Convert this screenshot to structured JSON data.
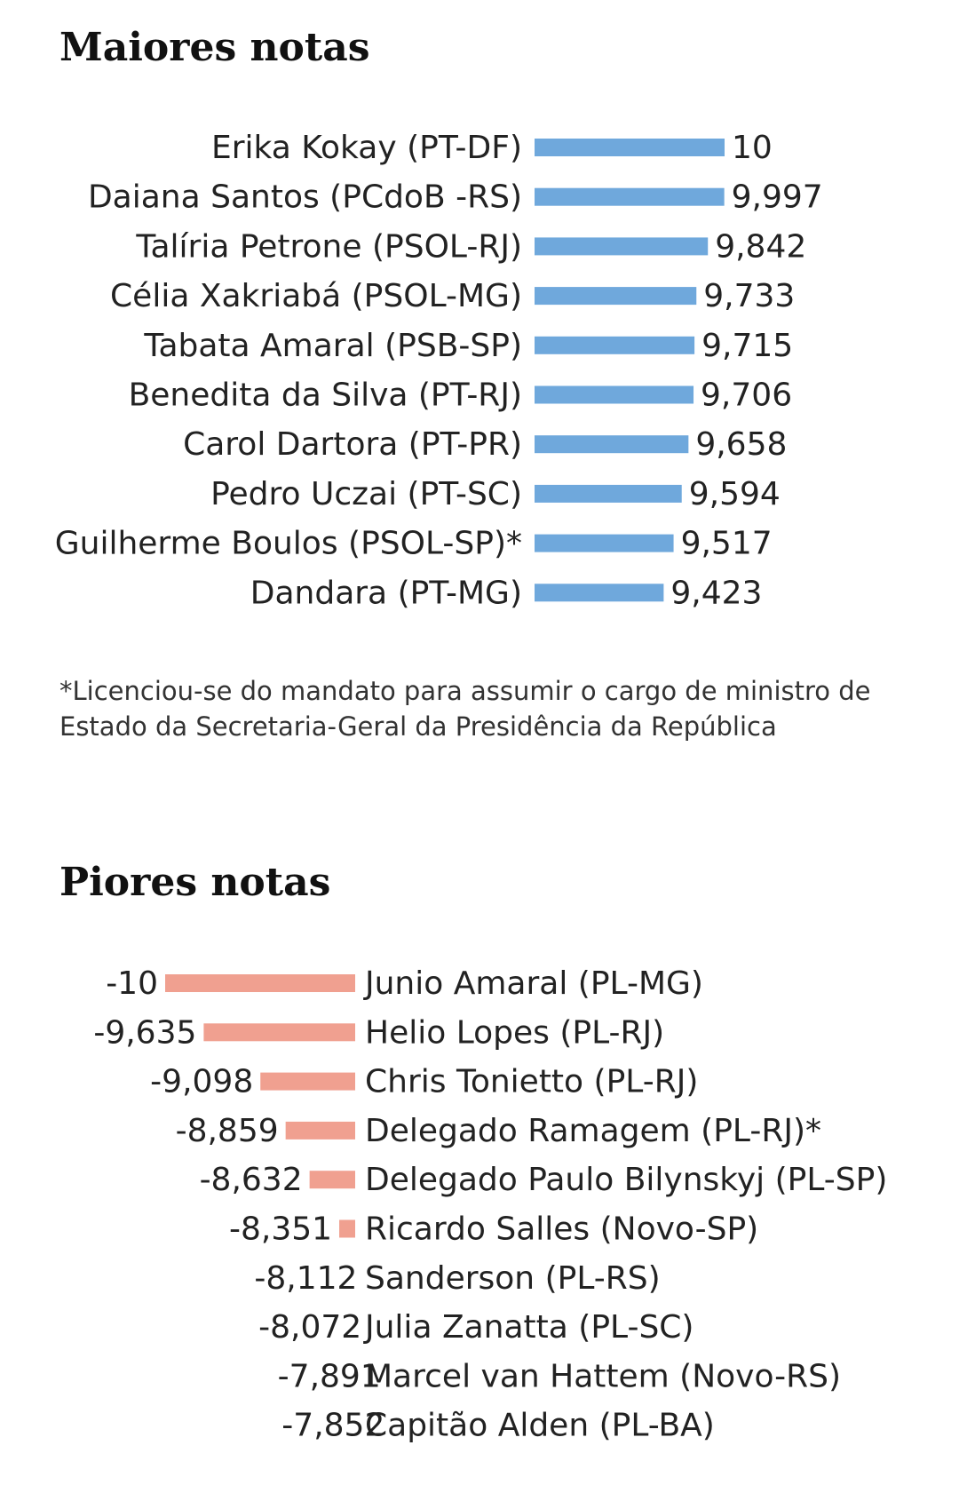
{
  "chart_data": [
    {
      "type": "bar",
      "title": "Maiores notas",
      "orientation": "horizontal",
      "color": "#6fa8dc",
      "categories": [
        "Erika Kokay (PT-DF)",
        "Daiana Santos (PCdoB -RS)",
        "Talíria Petrone (PSOL-RJ)",
        "Célia Xakriabá (PSOL-MG)",
        "Tabata Amaral (PSB-SP)",
        "Benedita da Silva (PT-RJ)",
        "Carol Dartora (PT-PR)",
        "Pedro Uczai (PT-SC)",
        "Guilherme Boulos (PSOL-SP)*",
        "Dandara (PT-MG)"
      ],
      "values": [
        10,
        9.997,
        9.842,
        9.733,
        9.715,
        9.706,
        9.658,
        9.594,
        9.517,
        9.423
      ],
      "value_labels": [
        "10",
        "9,997",
        "9,842",
        "9,733",
        "9,715",
        "9,706",
        "9,658",
        "9,594",
        "9,517",
        "9,423"
      ],
      "footnote": "*Licenciou-se do mandato para assumir o cargo de ministro de Estado da Secretaria-Geral da Presidência da República"
    },
    {
      "type": "bar",
      "title": "Piores notas",
      "orientation": "horizontal",
      "color": "#f0a090",
      "categories": [
        "Junio Amaral (PL-MG)",
        "Helio Lopes (PL-RJ)",
        "Chris Tonietto (PL-RJ)",
        "Delegado Ramagem (PL-RJ)*",
        "Delegado Paulo Bilynskyj (PL-SP)",
        "Ricardo Salles (Novo-SP)",
        "Sanderson (PL-RS)",
        "Julia Zanatta (PL-SC)",
        "Marcel van Hattem (Novo-RS)",
        "Capitão Alden (PL-BA)"
      ],
      "values": [
        -10,
        -9.635,
        -9.098,
        -8.859,
        -8.632,
        -8.351,
        -8.112,
        -8.072,
        -7.891,
        -7.852
      ],
      "value_labels": [
        "-10",
        "-9,635",
        "-9,098",
        "-8,859",
        "-8,632",
        "-8,351",
        "-8,112",
        "-8,072",
        "-7,891",
        "-7,852"
      ]
    }
  ]
}
